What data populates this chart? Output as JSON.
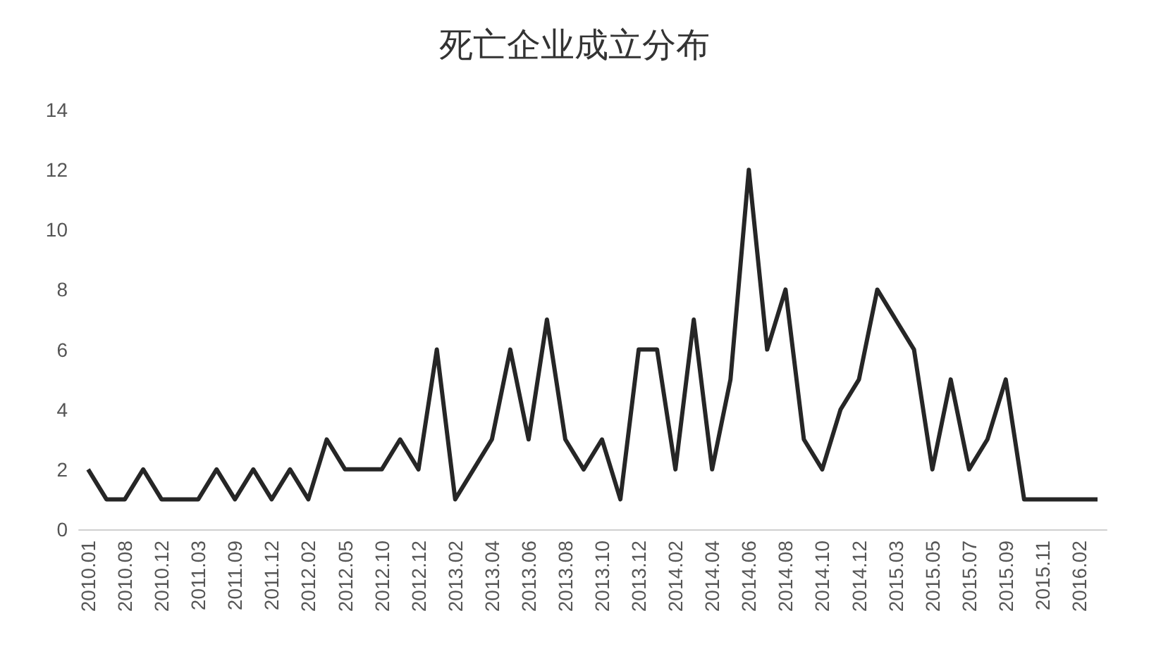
{
  "chart_data": {
    "type": "line",
    "title": "死亡企业成立分布",
    "categories": [
      "2010.01",
      null,
      "2010.08",
      null,
      "2010.12",
      null,
      "2011.03",
      null,
      "2011.09",
      null,
      "2011.12",
      null,
      "2012.02",
      null,
      "2012.05",
      null,
      "2012.10",
      null,
      "2012.12",
      null,
      "2013.02",
      null,
      "2013.04",
      null,
      "2013.06",
      null,
      "2013.08",
      null,
      "2013.10",
      null,
      "2013.12",
      null,
      "2014.02",
      null,
      "2014.04",
      null,
      "2014.06",
      null,
      "2014.08",
      null,
      "2014.10",
      null,
      "2014.12",
      null,
      "2015.03",
      null,
      "2015.05",
      null,
      "2015.07",
      null,
      "2015.09",
      null,
      "2015.11",
      null,
      "2016.02",
      null
    ],
    "series": [
      {
        "color": "#262626",
        "values": [
          2,
          1,
          1,
          2,
          1,
          1,
          1,
          2,
          1,
          2,
          1,
          2,
          1,
          3,
          2,
          2,
          2,
          3,
          2,
          6,
          1,
          2,
          3,
          6,
          3,
          7,
          3,
          2,
          3,
          1,
          6,
          6,
          2,
          7,
          2,
          5,
          12,
          6,
          8,
          3,
          2,
          4,
          5,
          8,
          7,
          6,
          2,
          5,
          2,
          3,
          5,
          1,
          1,
          1,
          1,
          1
        ]
      }
    ],
    "ylim": [
      0,
      14
    ],
    "yticks": [
      0,
      2,
      4,
      6,
      8,
      10,
      12,
      14
    ],
    "grid": false,
    "marker": "none",
    "line_style": "solid"
  }
}
